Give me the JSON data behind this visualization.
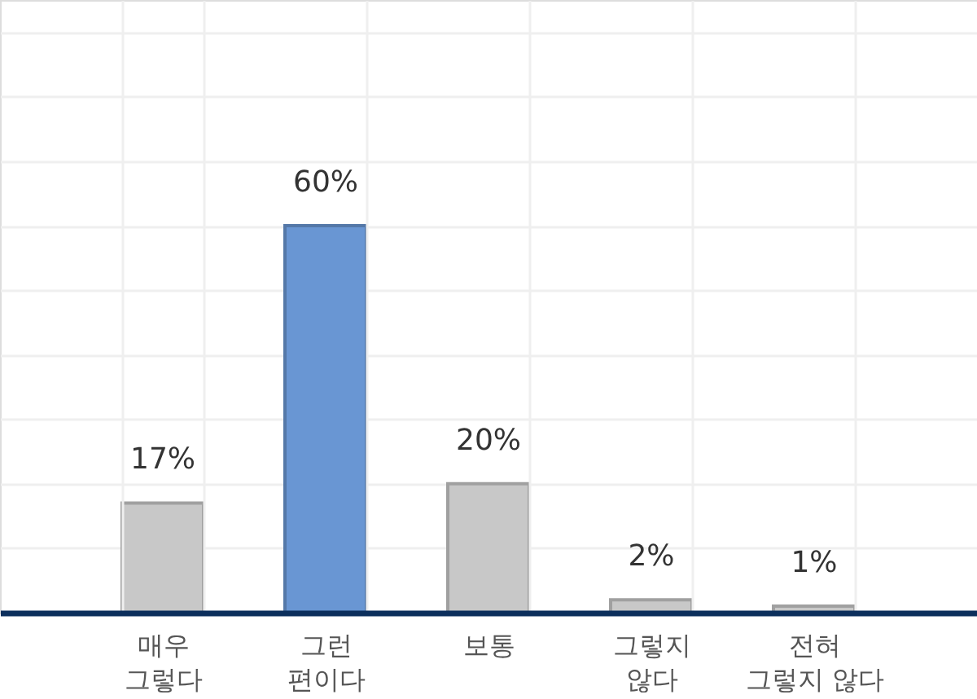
{
  "chart_data": {
    "type": "bar",
    "categories": [
      "매우\n그렇다",
      "그런\n편이다",
      "보통",
      "그렇지\n않다",
      "전혀\n그렇지 않다"
    ],
    "values": [
      17,
      60,
      20,
      2,
      1
    ],
    "value_labels": [
      "17%",
      "60%",
      "20%",
      "2%",
      "1%"
    ],
    "colors": [
      "#c8c8c8",
      "#6996d3",
      "#c8c8c8",
      "#c8c8c8",
      "#c8c8c8"
    ],
    "ylim": [
      0,
      95
    ],
    "yticks": [
      0,
      10,
      20,
      30,
      40,
      50,
      60,
      70,
      80,
      90
    ],
    "tick_labels": "x",
    "grid": true
  }
}
